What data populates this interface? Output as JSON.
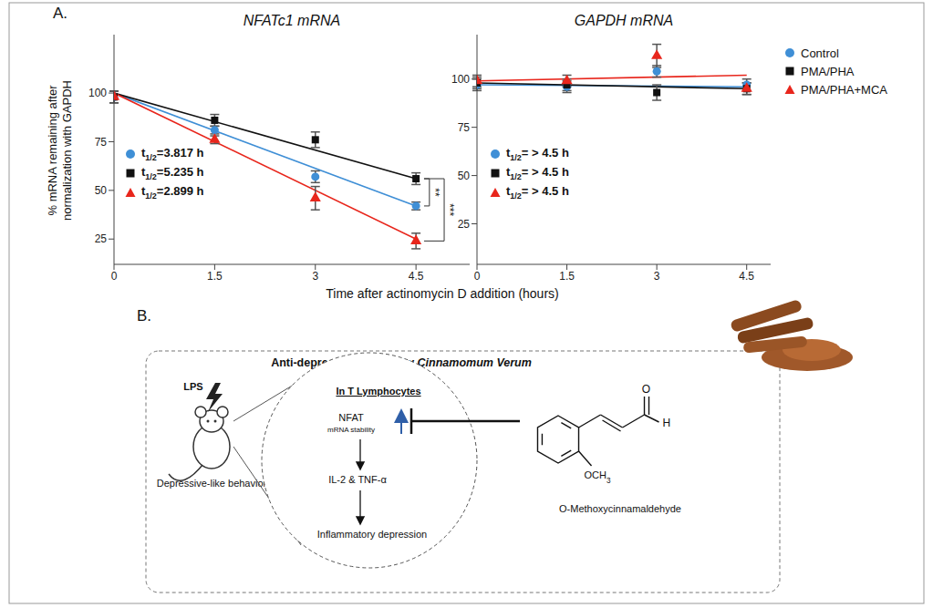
{
  "panel_labels": [
    "A.",
    "B."
  ],
  "chart_data": [
    {
      "type": "scatter",
      "title": "NFATc1 mRNA",
      "y_label": "% mRNA remaining after normalization with GAPDH",
      "x_label": "Time after actinomycin D addition (hours)",
      "x": [
        0,
        1.5,
        3,
        4.5
      ],
      "xlim": [
        0,
        5.3
      ],
      "xticks": [
        0,
        1.5,
        3,
        4.5
      ],
      "ylim": [
        12,
        130
      ],
      "yticks": [
        25,
        50,
        75,
        100
      ],
      "fit_x": [
        0,
        4.5
      ],
      "half_life_symbol": "t",
      "half_life_subscript": "1/2",
      "series": [
        {
          "name": "Control",
          "color": "#3f8fd6",
          "marker": "circle",
          "values": [
            98,
            81,
            57,
            42
          ],
          "errors": [
            3,
            2,
            3,
            2
          ],
          "fit": [
            100,
            42
          ],
          "half_life": "=3.817 h"
        },
        {
          "name": "PMA/PHA",
          "color": "#111111",
          "marker": "square",
          "values": [
            98,
            86,
            76,
            56
          ],
          "errors": [
            3,
            3,
            4,
            3
          ],
          "fit": [
            100,
            56
          ],
          "half_life": "=5.235 h"
        },
        {
          "name": "PMA/PHA+MCA",
          "color": "#e8261c",
          "marker": "triangle",
          "values": [
            98,
            76,
            46,
            24
          ],
          "errors": [
            3,
            2,
            6,
            4
          ],
          "fit": [
            100,
            25
          ],
          "half_life": "=2.899 h"
        }
      ],
      "significance": [
        {
          "series": [
            "PMA/PHA",
            "Control"
          ],
          "label": "**"
        },
        {
          "series": [
            "PMA/PHA",
            "PMA/PHA+MCA"
          ],
          "label": "***"
        }
      ]
    },
    {
      "type": "scatter",
      "title": "GAPDH mRNA",
      "x": [
        0,
        1.5,
        3,
        4.5
      ],
      "xlim": [
        0,
        4.9
      ],
      "xticks": [
        0,
        1.5,
        3,
        4.5
      ],
      "ylim": [
        4,
        123
      ],
      "yticks": [
        25,
        50,
        75,
        100
      ],
      "fit_x": [
        0,
        4.5
      ],
      "half_life_symbol": "t",
      "half_life_subscript": "1/2",
      "legend": "right",
      "series": [
        {
          "name": "Control",
          "color": "#3f8fd6",
          "marker": "circle",
          "values": [
            97,
            96,
            104,
            97
          ],
          "errors": [
            3,
            3,
            3,
            3
          ],
          "fit": [
            97,
            96
          ],
          "half_life": "= > 4.5 h"
        },
        {
          "name": "PMA/PHA",
          "color": "#111111",
          "marker": "square",
          "values": [
            98,
            97,
            93,
            95
          ],
          "errors": [
            3,
            3,
            4,
            3
          ],
          "fit": [
            98,
            95
          ],
          "half_life": "= > 4.5 h"
        },
        {
          "name": "PMA/PHA+MCA",
          "color": "#e8261c",
          "marker": "triangle",
          "values": [
            99,
            99,
            112,
            95
          ],
          "errors": [
            3,
            3,
            6,
            3
          ],
          "fit": [
            99,
            102
          ],
          "half_life": "= > 4.5 h"
        }
      ]
    }
  ],
  "diagram": {
    "title": "Anti-depressant effects by",
    "title_species": "Cinnamomum Verum",
    "stimulus": "LPS",
    "animal_label": "Depressive-like behavior",
    "cell_title": "In T Lymphocytes",
    "target": "NFAT",
    "target_detail": "mRNA stability",
    "cytokines": "IL-2 & TNF-α",
    "outcome": "Inflammatory depression",
    "compound": "O-Methoxycinnamaldehyde",
    "atoms": {
      "carbonyl_o": "O",
      "aldehyde_h": "H",
      "methoxy": "OCH3"
    }
  }
}
